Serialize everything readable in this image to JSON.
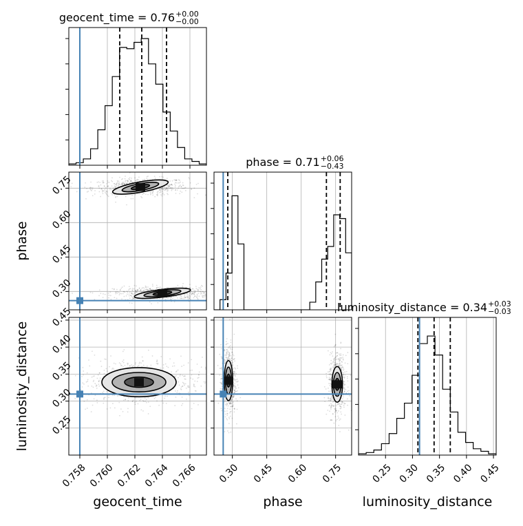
{
  "chart_data": {
    "type": "corner",
    "parameters": [
      {
        "name": "geocent_time",
        "axis_label": "geocent_time",
        "range": [
          0.7572,
          0.7672
        ],
        "ticks": [
          0.758,
          0.76,
          0.762,
          0.764,
          0.766
        ],
        "tick_labels": [
          "0.758",
          "0.760",
          "0.762",
          "0.764",
          "0.766"
        ],
        "injected": 0.758,
        "quantiles": [
          0.7609,
          0.7625,
          0.7643
        ],
        "title_text": "geocent_time = 0.76",
        "title_upper": "+0.00",
        "title_lower": "−0.00"
      },
      {
        "name": "phase",
        "axis_label": "phase",
        "range": [
          0.22,
          0.82
        ],
        "ticks": [
          0.3,
          0.45,
          0.6,
          0.75
        ],
        "tick_labels": [
          "0.30",
          "0.45",
          "0.60",
          "0.75"
        ],
        "injected": 0.26,
        "quantiles": [
          0.28,
          0.71,
          0.77
        ],
        "title_text": "phase = 0.71",
        "title_upper": "+0.06",
        "title_lower": "−0.43"
      },
      {
        "name": "luminosity_distance",
        "axis_label": "luminosity_distance",
        "range": [
          0.2,
          0.455
        ],
        "ticks": [
          0.25,
          0.3,
          0.35,
          0.4,
          0.45
        ],
        "tick_labels": [
          "0.25",
          "0.30",
          "0.35",
          "0.40",
          "0.45"
        ],
        "injected": 0.313,
        "quantiles": [
          0.31,
          0.34,
          0.37
        ],
        "title_text": "luminosity_distance = 0.34",
        "title_upper": "+0.03",
        "title_lower": "−0.03"
      }
    ],
    "histograms": {
      "geocent_time": [
        0.01,
        0.02,
        0.05,
        0.13,
        0.28,
        0.47,
        0.7,
        0.93,
        0.92,
        0.97,
        1.0,
        0.8,
        0.64,
        0.42,
        0.27,
        0.14,
        0.05,
        0.03,
        0.01
      ],
      "phase": [
        0.0,
        0.08,
        0.29,
        0.9,
        0.52,
        0.0,
        0.0,
        0.0,
        0.0,
        0.0,
        0.0,
        0.0,
        0.0,
        0.0,
        0.0,
        0.0,
        0.06,
        0.22,
        0.4,
        0.5,
        0.75,
        0.72,
        0.45
      ],
      "luminosity_distance": [
        0.01,
        0.02,
        0.04,
        0.09,
        0.17,
        0.29,
        0.41,
        0.63,
        0.88,
        0.94,
        0.79,
        0.52,
        0.34,
        0.18,
        0.1,
        0.05,
        0.03,
        0.01
      ]
    },
    "contours_2d": [
      {
        "x": "geocent_time",
        "y": "phase",
        "clusters": [
          {
            "center": [
              0.7624,
              0.755
            ],
            "levels": [
              [
                0.00068,
                0.0082
              ],
              [
                0.00135,
                0.015
              ],
              [
                0.00205,
                0.0225
              ]
            ],
            "tilt": 0.06
          },
          {
            "center": [
              0.764,
              0.292
            ],
            "levels": [
              [
                0.00068,
                0.0065
              ],
              [
                0.00135,
                0.012
              ],
              [
                0.00205,
                0.017
              ]
            ],
            "tilt": 0.04
          }
        ]
      },
      {
        "x": "geocent_time",
        "y": "luminosity_distance",
        "clusters": [
          {
            "center": [
              0.7623,
              0.335
            ],
            "levels": [
              [
                0.00105,
                0.0095
              ],
              [
                0.00195,
                0.018
              ],
              [
                0.0027,
                0.027
              ]
            ],
            "tilt": 0.0
          }
        ]
      },
      {
        "x": "phase",
        "y": "luminosity_distance",
        "clusters": [
          {
            "center": [
              0.283,
              0.338
            ],
            "levels": [
              [
                0.0075,
                0.012
              ],
              [
                0.013,
                0.025
              ],
              [
                0.0185,
                0.037
              ]
            ],
            "tilt": 0.0
          },
          {
            "center": [
              0.757,
              0.331
            ],
            "levels": [
              [
                0.009,
                0.011
              ],
              [
                0.016,
                0.022
              ],
              [
                0.023,
                0.033
              ]
            ],
            "tilt": 0.0
          }
        ]
      }
    ],
    "grid": true,
    "colors": {
      "histogram": "#000000",
      "quantile": "#000000",
      "injection": "#4682b4",
      "grid": "#b0b0b0"
    }
  }
}
